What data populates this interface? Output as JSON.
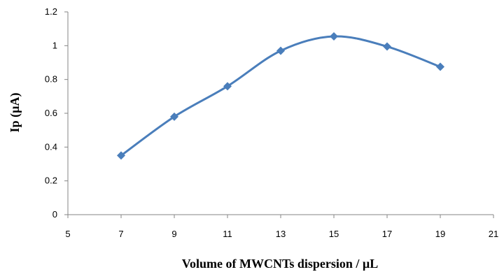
{
  "chart_data": {
    "type": "line",
    "title": "",
    "xlabel": "Volume of MWCNTs dispersion  /  µL",
    "ylabel": "Ip (µA)",
    "xlim": [
      5,
      21
    ],
    "ylim": [
      0,
      1.2
    ],
    "x_ticks": [
      5,
      7,
      9,
      11,
      13,
      15,
      17,
      19,
      21
    ],
    "y_ticks": [
      0,
      0.2,
      0.4,
      0.6,
      0.8,
      1,
      1.2
    ],
    "x_tick_labels": [
      "5",
      "7",
      "9",
      "11",
      "13",
      "15",
      "17",
      "19",
      "21"
    ],
    "y_tick_labels": [
      "0",
      "0.2",
      "0.4",
      "0.6",
      "0.8",
      "1",
      "1.2"
    ],
    "grid": false,
    "smooth": true,
    "marker": "diamond",
    "series": [
      {
        "x": [
          7,
          9,
          11,
          13,
          15,
          17,
          19
        ],
        "values": [
          0.35,
          0.58,
          0.76,
          0.97,
          1.055,
          0.995,
          0.875
        ]
      }
    ],
    "colors": {
      "series": "#4a7ebb",
      "axis": "#868686"
    }
  }
}
